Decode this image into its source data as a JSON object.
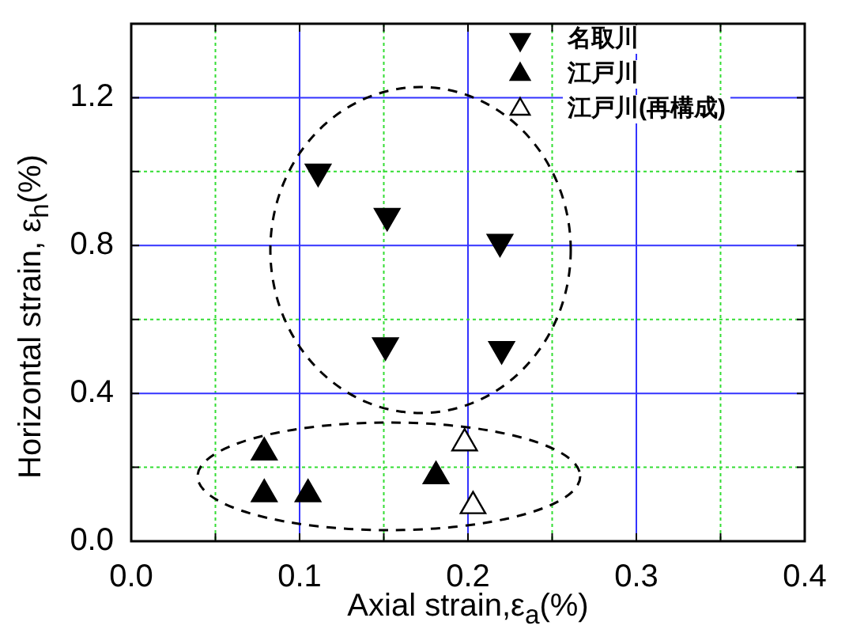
{
  "chart_data": {
    "type": "scatter",
    "xlabel": "Axial strain,ε$_{a}$(%)",
    "ylabel": "Horizontal strain, ε$_{h}$(%)",
    "xlim": [
      0,
      0.4
    ],
    "xticks": [
      {
        "value": 0,
        "label": "0.0"
      },
      {
        "value": 0.05,
        "label": null
      },
      0.1,
      {
        "value": 0.15,
        "label": null
      },
      0.2,
      {
        "value": 0.25,
        "label": null
      },
      0.3,
      {
        "value": 0.35,
        "label": null
      },
      0.4
    ],
    "ylim": [
      0,
      1.4
    ],
    "yticks": [
      {
        "value": 0,
        "label": "0.0"
      },
      {
        "value": 0.2,
        "label": null
      },
      0.4,
      {
        "value": 0.6,
        "label": null
      },
      0.8,
      {
        "value": 1.0,
        "label": null
      },
      1.2
    ],
    "grid": true,
    "legend": "top right",
    "series": [
      {
        "name": "名取川",
        "color": "#000000",
        "marker": "triangle_down",
        "x": [
          0.111,
          0.152,
          0.219,
          0.151,
          0.22
        ],
        "values": [
          1.0,
          0.88,
          0.81,
          0.53,
          0.52
        ]
      },
      {
        "name": "江戸川",
        "color": "#000000",
        "marker": "triangle",
        "x": [
          0.079,
          0.079,
          0.105,
          0.181
        ],
        "values": [
          0.24,
          0.127,
          0.127,
          0.176
        ]
      },
      {
        "name": "江戸川(再構成)",
        "color": "#000000",
        "marker": "triangle_open",
        "x": [
          0.198,
          0.203
        ],
        "values": [
          0.265,
          0.095
        ]
      }
    ]
  }
}
